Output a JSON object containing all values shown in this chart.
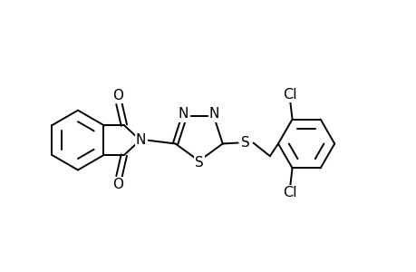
{
  "bg_color": "#ffffff",
  "line_color": "#000000",
  "lw": 1.4,
  "fs": 10.5,
  "xlim": [
    0,
    10
  ],
  "ylim": [
    0,
    6.5
  ]
}
